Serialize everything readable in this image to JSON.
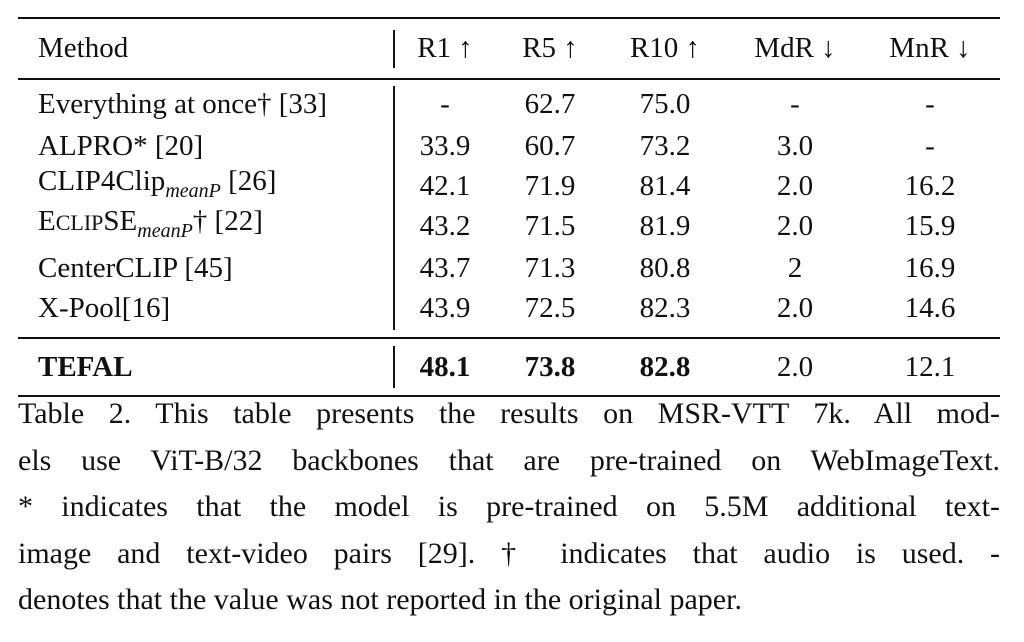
{
  "table": {
    "header": [
      "Method",
      "R1 ↑",
      "R5 ↑",
      "R10 ↑",
      "MdR ↓",
      "MnR ↓"
    ],
    "rows": [
      {
        "method": [
          {
            "text": "Everything at once† [33]"
          }
        ],
        "cells": [
          "-",
          "62.7",
          "75.0",
          "-",
          "-"
        ]
      },
      {
        "method": [
          {
            "text": "ALPRO* [20]"
          }
        ],
        "cells": [
          "33.9",
          "60.7",
          "73.2",
          "3.0",
          "-"
        ]
      },
      {
        "method": [
          {
            "text": "CLIP4Clip"
          },
          {
            "text": "meanP",
            "style": "sub"
          },
          {
            "text": " [26]"
          }
        ],
        "cells": [
          "42.1",
          "71.9",
          "81.4",
          "2.0",
          "16.2"
        ]
      },
      {
        "method": [
          {
            "text": "E"
          },
          {
            "text": "CLIP",
            "style": "smallcaps"
          },
          {
            "text": "SE"
          },
          {
            "text": "meanP",
            "style": "sub"
          },
          {
            "text": "† [22]"
          }
        ],
        "cells": [
          "43.2",
          "71.5",
          "81.9",
          "2.0",
          "15.9"
        ]
      },
      {
        "method": [
          {
            "text": "CenterCLIP [45]"
          }
        ],
        "cells": [
          "43.7",
          "71.3",
          "80.8",
          "2",
          "16.9"
        ]
      },
      {
        "method": [
          {
            "text": "X-Pool[16]"
          }
        ],
        "cells": [
          "43.9",
          "72.5",
          "82.3",
          "2.0",
          "14.6"
        ]
      }
    ],
    "final_row": {
      "method": [
        {
          "text": "TEFAL",
          "style": "bold"
        }
      ],
      "cells": [
        "48.1",
        "73.8",
        "82.8",
        "2.0",
        "12.1"
      ],
      "bold_cells": [
        true,
        true,
        true,
        false,
        false
      ]
    }
  },
  "caption": [
    "Table 2. This table presents the results on MSR-VTT 7k. All mod-",
    "els use ViT-B/32 backbones that are pre-trained on WebImageText.",
    "* indicates that the model is pre-trained on 5.5M additional text-",
    "image and text-video pairs  [29]. † indicates that audio is used. -",
    "denotes that the value was not reported in the original paper."
  ]
}
